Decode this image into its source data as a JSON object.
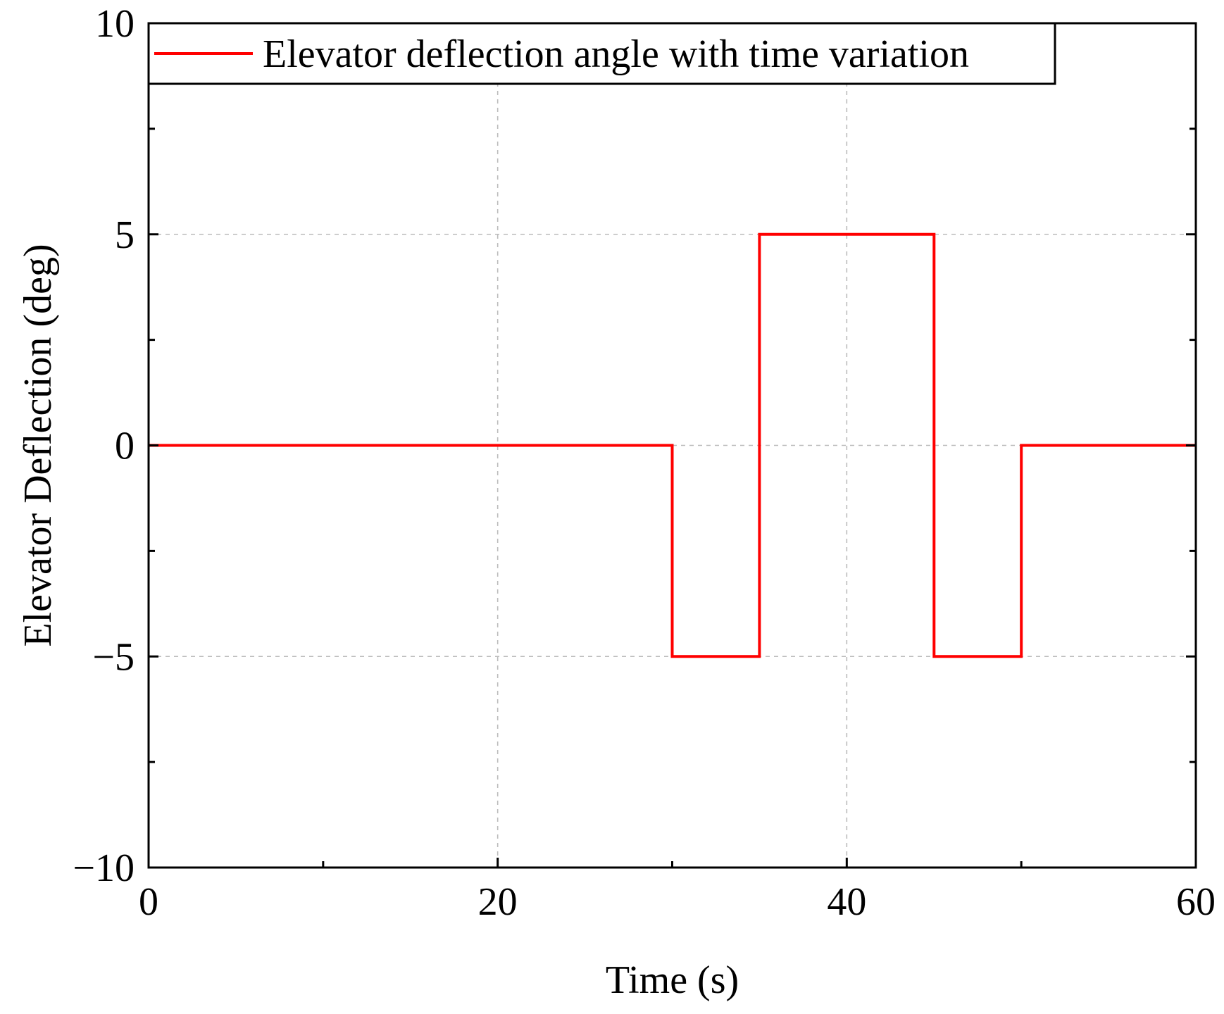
{
  "chart_data": {
    "type": "line",
    "title": "",
    "xlabel": "Time (s)",
    "ylabel": "Elevator Deflection (deg)",
    "xlim": [
      0,
      60
    ],
    "ylim": [
      -10,
      10
    ],
    "xticks": [
      0,
      20,
      40,
      60
    ],
    "xtick_labels": [
      "0",
      "20",
      "40",
      "60"
    ],
    "xminor_ticks": [
      10,
      30,
      50
    ],
    "yticks": [
      -10,
      -5,
      0,
      5,
      10
    ],
    "ytick_labels": [
      "−10",
      "−5",
      "0",
      "5",
      "10"
    ],
    "yminor_ticks": [
      -7.5,
      -2.5,
      2.5,
      7.5
    ],
    "grid": true,
    "legend_position": "top-left",
    "series": [
      {
        "name": "Elevator deflection angle with time variation",
        "color": "#ff0000",
        "step": true,
        "x": [
          0,
          30,
          30,
          35,
          35,
          45,
          45,
          50,
          50,
          60
        ],
        "y": [
          0,
          0,
          -5,
          -5,
          5,
          5,
          -5,
          -5,
          0,
          0
        ]
      }
    ]
  }
}
